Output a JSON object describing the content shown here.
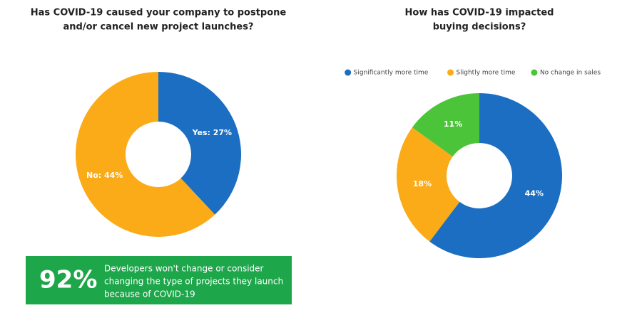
{
  "chart_data": [
    {
      "type": "donut",
      "title": [
        "Has COVID-19 caused your company to postpone",
        "and/or cancel new project launches?"
      ],
      "values": [
        27,
        44
      ],
      "value_labels": [
        "Yes: 27%",
        "No: 44%"
      ],
      "colors": [
        "#1b6ec2",
        "#fbab18"
      ]
    },
    {
      "type": "donut",
      "title": [
        "How has COVID-19 impacted",
        "buying decisions?"
      ],
      "categories": [
        "Significantly more time",
        "Slightly more time",
        "No change in sales"
      ],
      "values": [
        44,
        18,
        11
      ],
      "value_labels": [
        "44%",
        "18%",
        "11%"
      ],
      "colors": [
        "#1b6ec2",
        "#fbab18",
        "#4cc43a"
      ],
      "legend": "top"
    }
  ],
  "callout": {
    "stat": "92%",
    "text": [
      "Developers won't change or consider",
      "changing the type of projects they launch",
      "because of COVID-19"
    ]
  }
}
